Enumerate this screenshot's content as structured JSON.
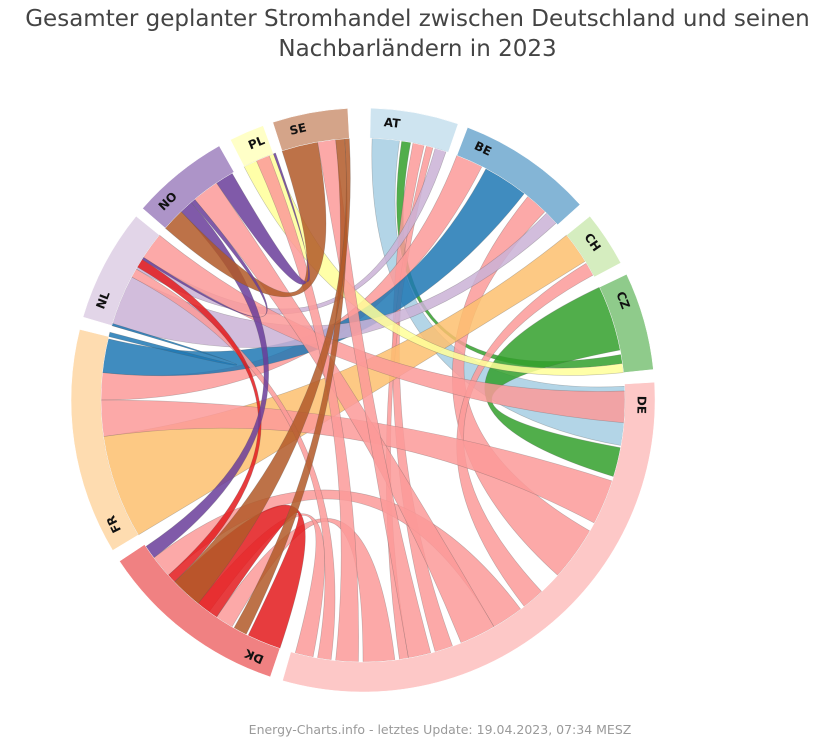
{
  "title_line1": "Gesamter geplanter Stromhandel zwischen Deutschland und seinen",
  "title_line2": "Nachbarländern in 2023",
  "footer": "Energy-Charts.info - letztes Update: 19.04.2023, 07:34 MESZ",
  "chart_data": {
    "type": "chord",
    "nodes": [
      {
        "id": "AT",
        "label": "AT",
        "color": "#a6cee3",
        "start": 1.5,
        "end": 19
      },
      {
        "id": "BE",
        "label": "BE",
        "color": "#1f78b4",
        "start": 21,
        "end": 48
      },
      {
        "id": "CH",
        "label": "CH",
        "color": "#b2df8a",
        "start": 51,
        "end": 62
      },
      {
        "id": "CZ",
        "label": "CZ",
        "color": "#33a02c",
        "start": 64.5,
        "end": 84
      },
      {
        "id": "DE",
        "label": "DE",
        "color": "#fb9a99",
        "start": 86.5,
        "end": 196
      },
      {
        "id": "DK",
        "label": "DK",
        "color": "#e31a1c",
        "start": 198.5,
        "end": 236.5
      },
      {
        "id": "FR",
        "label": "FR",
        "color": "#fdbf6f",
        "start": 239,
        "end": 284
      },
      {
        "id": "NL",
        "label": "NL",
        "color": "#cab2d6",
        "start": 286.5,
        "end": 309
      },
      {
        "id": "NO",
        "label": "NO",
        "color": "#6a3d9a",
        "start": 311,
        "end": 330.5
      },
      {
        "id": "PL",
        "label": "PL",
        "color": "#ffff99",
        "start": 333,
        "end": 340
      },
      {
        "id": "SE",
        "label": "SE",
        "color": "#b15928",
        "start": 342,
        "end": 357
      }
    ],
    "chords": [
      {
        "source": "AT",
        "s": [
          2,
          8
        ],
        "target": "DE",
        "t": [
          87,
          100
        ],
        "color": "#a6cee3"
      },
      {
        "source": "AT",
        "s": [
          8.5,
          10.5
        ],
        "target": "CZ",
        "t": [
          80,
          82
        ],
        "color": "#33a02c"
      },
      {
        "source": "AT",
        "s": [
          11,
          13.5
        ],
        "target": "DE",
        "t": [
          160,
          164
        ],
        "color": "#fb9a99"
      },
      {
        "source": "AT",
        "s": [
          14,
          15.5
        ],
        "target": "DE",
        "t": [
          170,
          172
        ],
        "color": "#fb9a99"
      },
      {
        "source": "AT",
        "s": [
          16,
          18.5
        ],
        "target": "NL",
        "t": [
          300,
          303
        ],
        "color": "#cab2d6"
      },
      {
        "source": "BE",
        "s": [
          21,
          27
        ],
        "target": "FR",
        "t": [
          270,
          276
        ],
        "color": "#fb9a99"
      },
      {
        "source": "BE",
        "s": [
          28,
          38
        ],
        "target": "FR",
        "t": [
          276,
          283.5
        ],
        "color": "#1f78b4"
      },
      {
        "source": "BE",
        "s": [
          39,
          44
        ],
        "target": "DE",
        "t": [
          120,
          132
        ],
        "color": "#fb9a99"
      },
      {
        "source": "BE",
        "s": [
          44.5,
          47.5
        ],
        "target": "NL",
        "t": [
          286.5,
          298
        ],
        "color": "#cab2d6"
      },
      {
        "source": "CH",
        "s": [
          51,
          58
        ],
        "target": "FR",
        "t": [
          239,
          262
        ],
        "color": "#fdbf6f"
      },
      {
        "source": "CH",
        "s": [
          58.5,
          61.5
        ],
        "target": "DE",
        "t": [
          137,
          142
        ],
        "color": "#fb9a99"
      },
      {
        "source": "CZ",
        "s": [
          64.5,
          79
        ],
        "target": "DE",
        "t": [
          100.5,
          107
        ],
        "color": "#33a02c"
      },
      {
        "source": "CZ",
        "s": [
          82,
          84
        ],
        "target": "PL",
        "t": [
          333,
          340
        ],
        "color": "#ffff99"
      },
      {
        "source": "DE",
        "s": [
          88,
          95
        ],
        "target": "NL",
        "t": [
          303,
          309
        ],
        "color": "#fb9a99"
      },
      {
        "source": "DE",
        "s": [
          108,
          118
        ],
        "target": "FR",
        "t": [
          262,
          270
        ],
        "color": "#fb9a99"
      },
      {
        "source": "DE",
        "s": [
          143,
          150
        ],
        "target": "DK",
        "t": [
          228,
          233
        ],
        "color": "#fb9a99"
      },
      {
        "source": "DE",
        "s": [
          150,
          158
        ],
        "target": "NO",
        "t": [
          320,
          326
        ],
        "color": "#fb9a99"
      },
      {
        "source": "DE",
        "s": [
          165,
          170
        ],
        "target": "SE",
        "t": [
          350,
          354
        ],
        "color": "#fb9a99"
      },
      {
        "source": "DE",
        "s": [
          173,
          180
        ],
        "target": "DK",
        "t": [
          210,
          214
        ],
        "color": "#fb9a99"
      },
      {
        "source": "DE",
        "s": [
          181,
          186
        ],
        "target": "PL",
        "t": [
          336,
          339
        ],
        "color": "#fb9a99"
      },
      {
        "source": "DE",
        "s": [
          187,
          190
        ],
        "target": "NL",
        "t": [
          298,
          300
        ],
        "color": "#fb9a99"
      },
      {
        "source": "DE",
        "s": [
          191,
          195
        ],
        "target": "DK",
        "t": [
          216,
          219
        ],
        "color": "#fb9a99"
      },
      {
        "source": "DK",
        "s": [
          198.5,
          206
        ],
        "target": "DK",
        "t": [
          214,
          226
        ],
        "color": "#e31a1c"
      },
      {
        "source": "DK",
        "s": [
          226,
          228
        ],
        "target": "NL",
        "t": [
          300.5,
          302.5
        ],
        "color": "#e31a1c"
      },
      {
        "source": "DK",
        "s": [
          233,
          236
        ],
        "target": "NO",
        "t": [
          316,
          319
        ],
        "color": "#6a3d9a"
      },
      {
        "source": "DK",
        "s": [
          206.5,
          209.5
        ],
        "target": "SE",
        "t": [
          354,
          356
        ],
        "color": "#b15928"
      },
      {
        "source": "FR",
        "s": [
          284,
          285
        ],
        "target": "NL",
        "t": [
          286.5,
          287
        ],
        "color": "#1f78b4"
      },
      {
        "source": "NO",
        "s": [
          311,
          316
        ],
        "target": "SE",
        "t": [
          342,
          350
        ],
        "color": "#b15928"
      },
      {
        "source": "NO",
        "s": [
          319,
          320
        ],
        "target": "NL",
        "t": [
          302.5,
          303
        ],
        "color": "#6a3d9a"
      },
      {
        "source": "NO",
        "s": [
          326,
          330
        ],
        "target": "PL",
        "t": [
          340,
          340.5
        ],
        "color": "#6a3d9a"
      },
      {
        "source": "SE",
        "s": [
          356,
          357
        ],
        "target": "DK",
        "t": [
          219,
          226
        ],
        "color": "#b15928"
      }
    ]
  }
}
